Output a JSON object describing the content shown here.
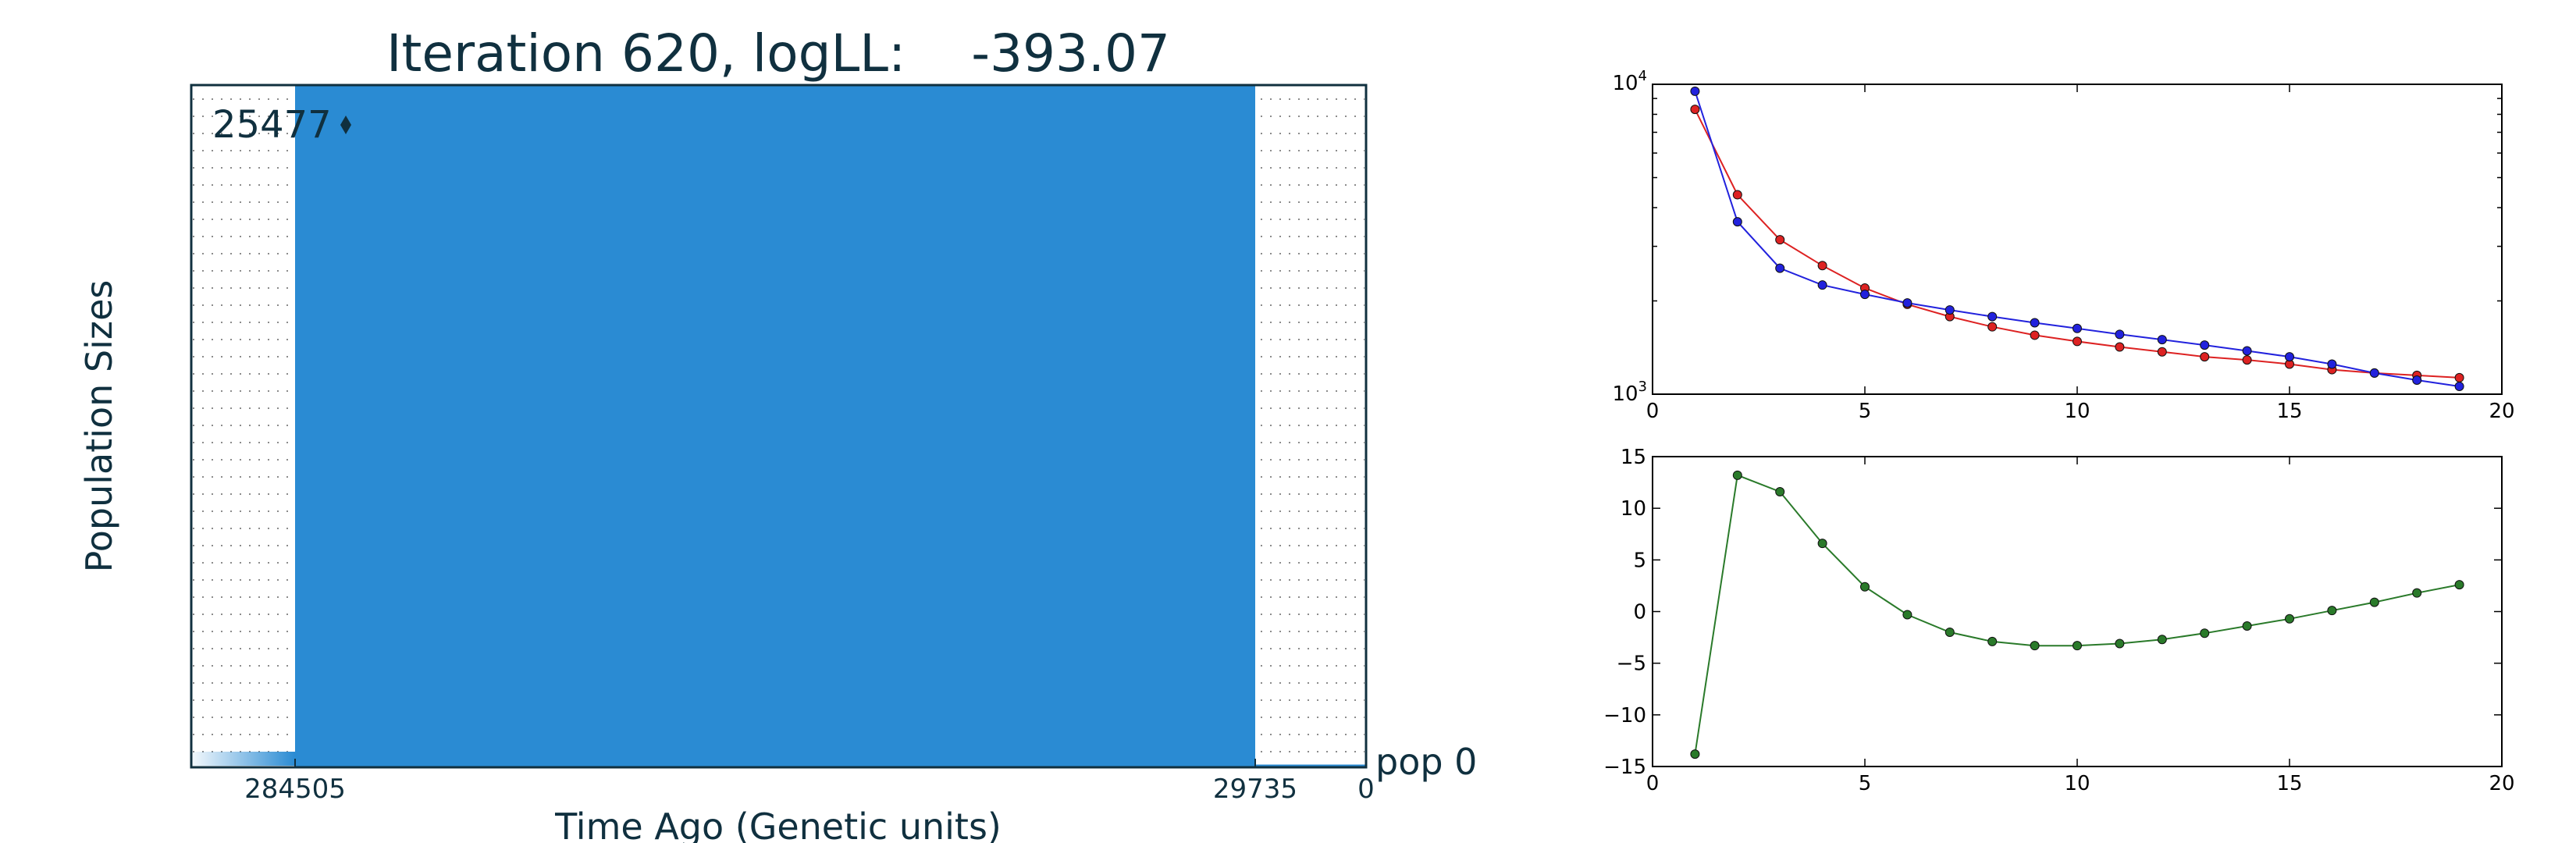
{
  "chart_data": [
    {
      "type": "area",
      "title": "Iteration 620, logLL:    -393.07",
      "xlabel": "Time Ago (Genetic units)",
      "ylabel": "Population Sizes",
      "x_tick_labels": [
        "284505",
        "29735",
        "0"
      ],
      "population_label": "pop 0",
      "size_annotation": "25477",
      "fill_color": "#2a8bd3",
      "frame_color": "#10303f",
      "grid": "dotted"
    },
    {
      "type": "line",
      "y_scale": "log",
      "xlim": [
        0,
        20
      ],
      "ylim": [
        1000,
        10000
      ],
      "x_ticks": [
        0,
        5,
        10,
        15,
        20
      ],
      "y_tick_labels": [
        "10^4",
        "10^3"
      ],
      "x": [
        1,
        2,
        3,
        4,
        5,
        6,
        7,
        8,
        9,
        10,
        11,
        12,
        13,
        14,
        15,
        16,
        17,
        18,
        19
      ],
      "series": [
        {
          "color": "#dd2222",
          "values": [
            8300,
            4400,
            3150,
            2600,
            2200,
            1950,
            1780,
            1650,
            1550,
            1480,
            1420,
            1370,
            1320,
            1290,
            1250,
            1200,
            1170,
            1150,
            1130
          ]
        },
        {
          "color": "#2222dd",
          "values": [
            9500,
            3600,
            2550,
            2250,
            2100,
            1970,
            1870,
            1780,
            1700,
            1630,
            1560,
            1500,
            1440,
            1380,
            1320,
            1250,
            1170,
            1110,
            1060
          ]
        }
      ]
    },
    {
      "type": "line",
      "xlim": [
        0,
        20
      ],
      "ylim": [
        -15,
        15
      ],
      "x_ticks": [
        0,
        5,
        10,
        15,
        20
      ],
      "y_ticks": [
        15,
        10,
        5,
        0,
        -5,
        -10,
        -15
      ],
      "x": [
        1,
        2,
        3,
        4,
        5,
        6,
        7,
        8,
        9,
        10,
        11,
        12,
        13,
        14,
        15,
        16,
        17,
        18,
        19
      ],
      "series": [
        {
          "color": "#2a7a2a",
          "values": [
            -13.8,
            13.2,
            11.6,
            6.6,
            2.4,
            -0.3,
            -2.0,
            -2.9,
            -3.3,
            -3.3,
            -3.1,
            -2.7,
            -2.1,
            -1.4,
            -0.7,
            0.1,
            0.9,
            1.8,
            2.6
          ]
        }
      ]
    }
  ]
}
